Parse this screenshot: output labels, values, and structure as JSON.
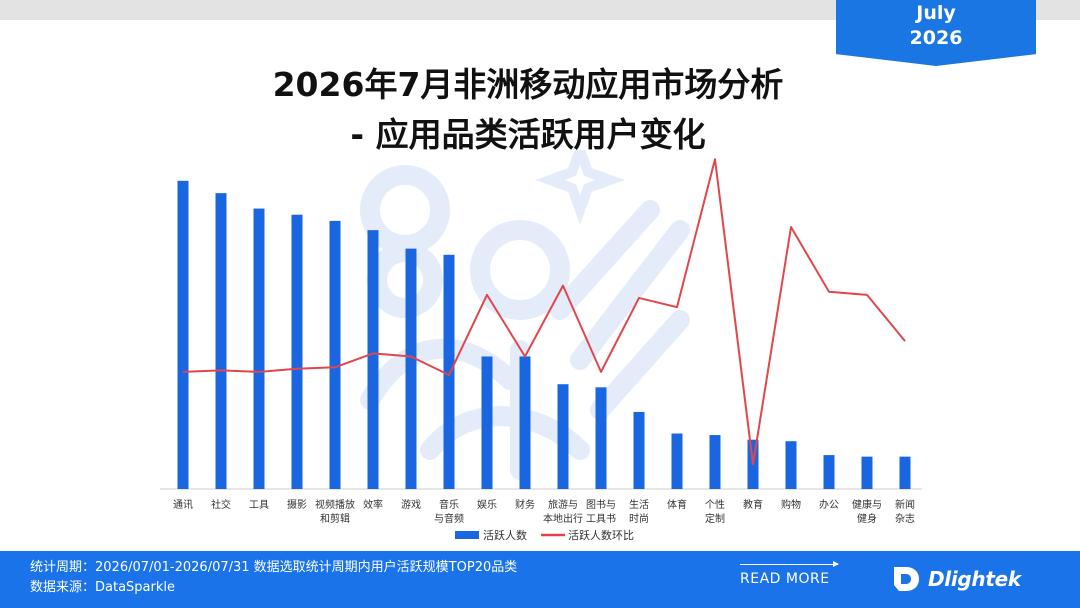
{
  "badge": {
    "month": "July",
    "year": "2026"
  },
  "title": {
    "line1": "2026年7月非洲移动应用市场分析",
    "line2": "- 应用品类活跃用户变化"
  },
  "chart_data": {
    "type": "bar",
    "categories": [
      [
        "通讯"
      ],
      [
        "社交"
      ],
      [
        "工具"
      ],
      [
        "摄影"
      ],
      [
        "视频播放",
        "和剪辑"
      ],
      [
        "效率"
      ],
      [
        "游戏"
      ],
      [
        "音乐",
        "与音频"
      ],
      [
        "娱乐"
      ],
      [
        "财务"
      ],
      [
        "旅游与",
        "本地出行"
      ],
      [
        "图书与",
        "工具书"
      ],
      [
        "生活",
        "时尚"
      ],
      [
        "体育"
      ],
      [
        "个性",
        "定制"
      ],
      [
        "教育"
      ],
      [
        "购物"
      ],
      [
        "办公"
      ],
      [
        "健康与",
        "健身"
      ],
      [
        "新闻",
        "杂志"
      ]
    ],
    "series": [
      {
        "name": "活跃人数",
        "kind": "bar",
        "color": "#1a66e0",
        "values": [
          100,
          96,
          91,
          89,
          87,
          84,
          78,
          76,
          43,
          43,
          34,
          33,
          25,
          18,
          17.5,
          16,
          15.5,
          11,
          10.5,
          10.5
        ]
      },
      {
        "name": "活跃人数环比",
        "kind": "line",
        "color": "#e0474c",
        "values": [
          38,
          38.5,
          38,
          39,
          39.5,
          44,
          43,
          37,
          63,
          43,
          66,
          38,
          62,
          59,
          107,
          8,
          85,
          64,
          63,
          48
        ]
      }
    ],
    "ylim": [
      0,
      110
    ],
    "legend": "bottom-center",
    "grid": false
  },
  "footer": {
    "period": "统计周期：2026/07/01-2026/07/31 数据选取统计周期内用户活跃规模TOP20品类",
    "source": "数据来源：DataSparkle",
    "read_more": "READ MORE",
    "brand": "Dlightek"
  },
  "colors": {
    "accent": "#1a73e8",
    "bar": "#1a66e0",
    "line": "#e0474c"
  }
}
